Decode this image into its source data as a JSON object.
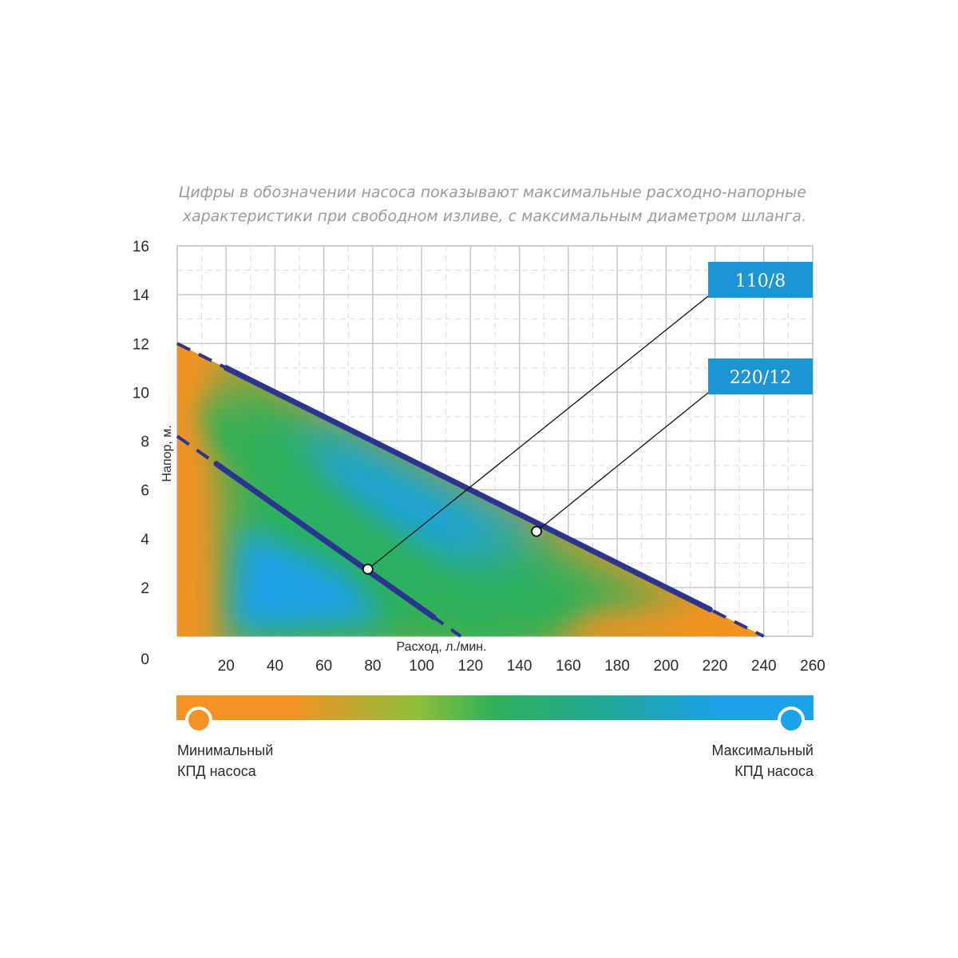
{
  "note": {
    "line1": "Цифры в обозначении насоса показывают максимальные расходно-напорные",
    "line2": "характеристики при свободном изливе, с максимальным диаметром шланга."
  },
  "colors": {
    "orange": "#f39323",
    "green": "#2fb15a",
    "blue": "#1aa3e6",
    "curve": "#2b3590",
    "badge": "#1b95d4",
    "grid": "#c8c8c8"
  },
  "chart_data": {
    "type": "line",
    "xlabel": "Расход, л./мин.",
    "ylabel": "Напор, м.",
    "xlim": [
      0,
      260
    ],
    "ylim": [
      0,
      16
    ],
    "x_ticks": [
      20,
      40,
      60,
      80,
      100,
      120,
      140,
      160,
      180,
      200,
      220,
      240,
      260
    ],
    "x_tick_labels": [
      "20",
      "40",
      "60",
      "80",
      "100",
      "120",
      "140",
      "160",
      "180",
      "200",
      "220",
      "240",
      "260"
    ],
    "y_ticks": [
      0,
      2,
      4,
      6,
      8,
      10,
      12,
      14,
      16
    ],
    "y_tick_labels": [
      "0",
      "2",
      "4",
      "6",
      "8",
      "10",
      "12",
      "14",
      "16"
    ],
    "grid": true,
    "series": [
      {
        "name": "220/12",
        "x": [
          0,
          240
        ],
        "y": [
          12,
          0
        ],
        "solid_range": [
          20,
          218
        ],
        "marker": {
          "x": 147,
          "y": 4.3
        }
      },
      {
        "name": "110/8",
        "x": [
          0,
          116
        ],
        "y": [
          8.2,
          0
        ],
        "solid_range": [
          16,
          105
        ],
        "marker": {
          "x": 78,
          "y": 2.75
        }
      }
    ],
    "legend": {
      "min_label_1": "Минимальный",
      "min_label_2": "КПД насоса",
      "max_label_1": "Максимальный",
      "max_label_2": "КПД насоса"
    }
  }
}
